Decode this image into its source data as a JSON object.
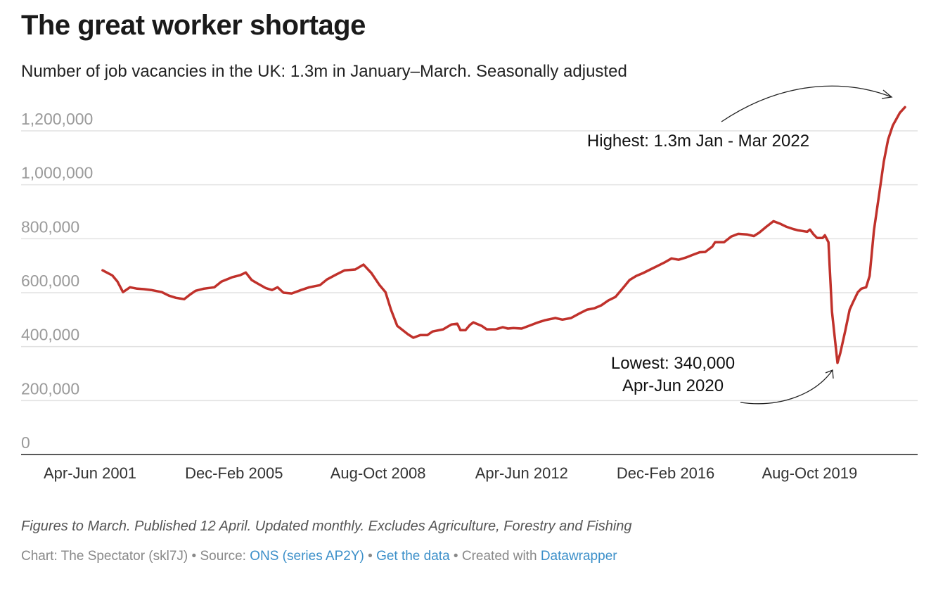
{
  "chart_data": {
    "type": "line",
    "title": "The great worker shortage",
    "subtitle": "Number of job vacancies in the UK: 1.3m in January–March. Seasonally adjusted",
    "xlabel": "",
    "ylabel": "",
    "ylim": [
      0,
      1200000
    ],
    "xlim": [
      2000.9,
      2022.6
    ],
    "grid": true,
    "line_color": "#c0312b",
    "y_ticks": [
      {
        "value": 0,
        "label": "0"
      },
      {
        "value": 200000,
        "label": "200,000"
      },
      {
        "value": 400000,
        "label": "400,000"
      },
      {
        "value": 600000,
        "label": "600,000"
      },
      {
        "value": 800000,
        "label": "800,000"
      },
      {
        "value": 1000000,
        "label": "1,000,000"
      },
      {
        "value": 1200000,
        "label": "1,200,000"
      }
    ],
    "x_ticks": [
      {
        "value": 2001.33,
        "label": "Apr-Jun 2001"
      },
      {
        "value": 2005.0,
        "label": "Dec-Feb 2005"
      },
      {
        "value": 2008.67,
        "label": "Aug-Oct 2008"
      },
      {
        "value": 2012.33,
        "label": "Apr-Jun 2012"
      },
      {
        "value": 2016.0,
        "label": "Dec-Feb 2016"
      },
      {
        "value": 2019.67,
        "label": "Aug-Oct 2019"
      }
    ],
    "series": [
      {
        "name": "Job vacancies",
        "x": [
          2001.65,
          2001.9,
          2002.03,
          2002.17,
          2002.35,
          2002.53,
          2002.71,
          2002.89,
          2003.16,
          2003.34,
          2003.52,
          2003.73,
          2003.87,
          2004.02,
          2004.23,
          2004.5,
          2004.68,
          2004.95,
          2005.16,
          2005.3,
          2005.45,
          2005.58,
          2005.81,
          2005.97,
          2006.11,
          2006.26,
          2006.47,
          2006.71,
          2006.92,
          2007.19,
          2007.37,
          2007.6,
          2007.82,
          2008.09,
          2008.3,
          2008.5,
          2008.71,
          2008.86,
          2009.0,
          2009.16,
          2009.43,
          2009.57,
          2009.75,
          2009.93,
          2010.06,
          2010.33,
          2010.54,
          2010.69,
          2010.77,
          2010.9,
          2011.01,
          2011.1,
          2011.31,
          2011.44,
          2011.67,
          2011.85,
          2011.98,
          2012.12,
          2012.33,
          2012.57,
          2012.75,
          2012.93,
          2013.19,
          2013.37,
          2013.59,
          2013.82,
          2014.0,
          2014.18,
          2014.36,
          2014.54,
          2014.72,
          2014.9,
          2015.08,
          2015.25,
          2015.43,
          2015.61,
          2015.79,
          2015.97,
          2016.15,
          2016.33,
          2016.51,
          2016.69,
          2016.87,
          2017.01,
          2017.19,
          2017.26,
          2017.49,
          2017.67,
          2017.85,
          2018.07,
          2018.25,
          2018.39,
          2018.57,
          2018.75,
          2018.93,
          2019.07,
          2019.25,
          2019.38,
          2019.61,
          2019.68,
          2019.77,
          2019.86,
          2020.0,
          2020.06,
          2020.15,
          2020.18,
          2020.24,
          2020.38,
          2020.45,
          2020.58,
          2020.69,
          2020.77,
          2020.9,
          2020.99,
          2021.11,
          2021.2,
          2021.31,
          2021.44,
          2021.56,
          2021.67,
          2021.79,
          2021.97,
          2022.1
        ],
        "values": [
          683000,
          664000,
          641000,
          602000,
          620000,
          615000,
          613000,
          610000,
          602000,
          589000,
          581000,
          576000,
          592000,
          607000,
          615000,
          620000,
          641000,
          657000,
          665000,
          675000,
          647000,
          636000,
          617000,
          610000,
          620000,
          600000,
          597000,
          610000,
          620000,
          628000,
          649000,
          667000,
          683000,
          686000,
          704000,
          673000,
          628000,
          602000,
          537000,
          477000,
          446000,
          433000,
          443000,
          443000,
          456000,
          464000,
          482000,
          485000,
          461000,
          461000,
          480000,
          490000,
          477000,
          464000,
          464000,
          472000,
          467000,
          469000,
          467000,
          480000,
          490000,
          498000,
          506000,
          500000,
          506000,
          524000,
          537000,
          542000,
          553000,
          571000,
          584000,
          615000,
          647000,
          662000,
          673000,
          686000,
          699000,
          712000,
          727000,
          722000,
          730000,
          740000,
          750000,
          751000,
          771000,
          787000,
          787000,
          808000,
          818000,
          816000,
          810000,
          823000,
          845000,
          865000,
          855000,
          845000,
          836000,
          831000,
          826000,
          834000,
          816000,
          803000,
          803000,
          813000,
          787000,
          701000,
          529000,
          340000,
          375000,
          459000,
          537000,
          563000,
          602000,
          615000,
          620000,
          662000,
          832000,
          962000,
          1085000,
          1168000,
          1220000,
          1267000,
          1288000
        ]
      }
    ],
    "annotations": [
      {
        "text": "Highest: 1.3m Jan - Mar 2022"
      },
      {
        "lines": [
          "Lowest: 340,000",
          "Apr-Jun 2020"
        ]
      }
    ]
  },
  "footer": {
    "note": "Figures to March. Published 12 April. Updated monthly. Excludes Agriculture, Forestry and Fishing",
    "chart_credit": "Chart: The Spectator (skl7J)",
    "sep": " • ",
    "source_label": "Source: ",
    "source_link": "ONS (series AP2Y)",
    "get_data": "Get the data",
    "created_with": "Created with ",
    "datawrapper": "Datawrapper"
  }
}
